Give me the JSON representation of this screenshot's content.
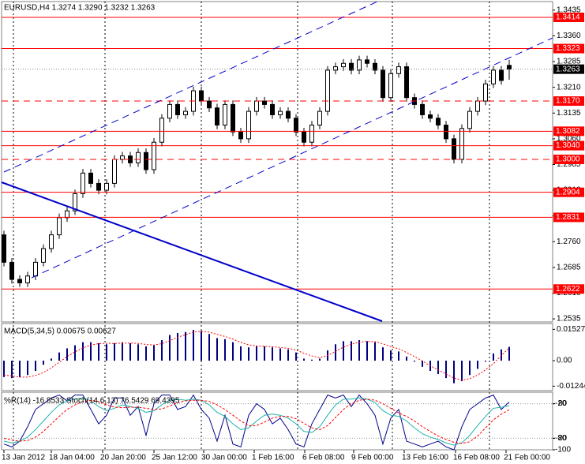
{
  "chart_data": [
    {
      "type": "candlestick",
      "title": "EURUSD,H4 1.3274 1.3290 1.3232 1.3263",
      "open": [
        1.278,
        1.27,
        1.265,
        1.264,
        1.266,
        1.27,
        1.274,
        1.278,
        1.283,
        1.285,
        1.29,
        1.296,
        1.293,
        1.291,
        1.293,
        1.3,
        1.301,
        1.299,
        1.302,
        1.297,
        1.305,
        1.312,
        1.316,
        1.313,
        1.314,
        1.32,
        1.317,
        1.315,
        1.31,
        1.316,
        1.308,
        1.306,
        1.314,
        1.317,
        1.316,
        1.313,
        1.314,
        1.312,
        1.308,
        1.305,
        1.31,
        1.314,
        1.326,
        1.327,
        1.328,
        1.326,
        1.329,
        1.328,
        1.326,
        1.318,
        1.325,
        1.327,
        1.318,
        1.316,
        1.313,
        1.312,
        1.31,
        1.306,
        1.3,
        1.309,
        1.314,
        1.317,
        1.322,
        1.326,
        1.3274
      ],
      "high": [
        1.2792,
        1.2712,
        1.2662,
        1.2672,
        1.2712,
        1.2752,
        1.2792,
        1.2842,
        1.2862,
        1.2912,
        1.2972,
        1.2972,
        1.2942,
        1.2942,
        1.3012,
        1.3022,
        1.3022,
        1.3032,
        1.3032,
        1.3062,
        1.3132,
        1.3172,
        1.3172,
        1.3152,
        1.3212,
        1.3212,
        1.3182,
        1.3162,
        1.3172,
        1.3172,
        1.3092,
        1.3152,
        1.3182,
        1.3182,
        1.3172,
        1.3152,
        1.3152,
        1.3132,
        1.3092,
        1.3112,
        1.3152,
        1.3272,
        1.3282,
        1.3292,
        1.3292,
        1.3302,
        1.3302,
        1.3292,
        1.3272,
        1.3262,
        1.3282,
        1.3282,
        1.3192,
        1.3172,
        1.3142,
        1.3132,
        1.3112,
        1.3072,
        1.3102,
        1.3152,
        1.3182,
        1.3232,
        1.3272,
        1.3272,
        1.329
      ],
      "low": [
        1.2688,
        1.2638,
        1.2628,
        1.2628,
        1.2648,
        1.2688,
        1.2728,
        1.2768,
        1.2818,
        1.2838,
        1.2888,
        1.2918,
        1.2898,
        1.2898,
        1.2918,
        1.2988,
        1.2978,
        1.2978,
        1.2958,
        1.2958,
        1.3038,
        1.3108,
        1.3118,
        1.3118,
        1.3128,
        1.3158,
        1.3138,
        1.3088,
        1.3088,
        1.3068,
        1.3048,
        1.3048,
        1.3128,
        1.3148,
        1.3118,
        1.3118,
        1.3108,
        1.3068,
        1.3038,
        1.3038,
        1.3088,
        1.3128,
        1.3248,
        1.3258,
        1.3248,
        1.3248,
        1.3268,
        1.3248,
        1.3168,
        1.3168,
        1.3238,
        1.3168,
        1.3148,
        1.3118,
        1.3108,
        1.3088,
        1.3048,
        1.2988,
        1.2988,
        1.3078,
        1.3128,
        1.3158,
        1.3208,
        1.3218,
        1.3232
      ],
      "close": [
        1.27,
        1.265,
        1.264,
        1.266,
        1.27,
        1.274,
        1.278,
        1.283,
        1.285,
        1.29,
        1.296,
        1.293,
        1.291,
        1.293,
        1.3,
        1.301,
        1.299,
        1.302,
        1.297,
        1.305,
        1.312,
        1.316,
        1.313,
        1.314,
        1.32,
        1.317,
        1.315,
        1.31,
        1.316,
        1.308,
        1.306,
        1.314,
        1.317,
        1.316,
        1.313,
        1.314,
        1.312,
        1.308,
        1.305,
        1.31,
        1.314,
        1.326,
        1.327,
        1.328,
        1.326,
        1.329,
        1.328,
        1.326,
        1.318,
        1.325,
        1.327,
        1.318,
        1.316,
        1.313,
        1.312,
        1.31,
        1.306,
        1.3,
        1.309,
        1.314,
        1.317,
        1.322,
        1.326,
        1.323,
        1.3263
      ],
      "xlim": [
        -0.3,
        69.5
      ],
      "xticks": [
        {
          "value": 0,
          "label": "13 Jan 2012"
        },
        {
          "value": 6,
          "label": "18 Jan 04:00"
        },
        {
          "value": 12.5,
          "label": "20 Jan 20:00"
        },
        {
          "value": 19,
          "label": "25 Jan 12:00"
        },
        {
          "value": 25.3,
          "label": "30 Jan 00:00"
        },
        {
          "value": 31.7,
          "label": "1 Feb 16:00"
        },
        {
          "value": 38.1,
          "label": "6 Feb 08:00"
        },
        {
          "value": 44.3,
          "label": "9 Feb 00:00"
        },
        {
          "value": 50.7,
          "label": "13 Feb 16:00"
        },
        {
          "value": 57.2,
          "label": "16 Feb 08:00"
        },
        {
          "value": 63.6,
          "label": "21 Feb 00:00"
        }
      ],
      "ylim": [
        1.2526,
        1.346
      ],
      "yticks": [
        1.2535,
        {
          "value": 1.261,
          "label": "1.2610"
        },
        1.2685,
        {
          "value": 1.276,
          "label": "1.2760"
        },
        1.2835,
        {
          "value": 1.291,
          "label": "1.2910"
        },
        1.2985,
        {
          "value": 1.306,
          "label": "1.3060"
        },
        1.3135,
        {
          "value": 1.321,
          "label": "1.3210"
        },
        1.3285,
        {
          "value": 1.336,
          "label": "1.3360"
        },
        1.3435
      ],
      "levels": [
        {
          "value": 1.3414,
          "label": "1.3414",
          "style": "solid"
        },
        {
          "value": 1.3323,
          "label": "1.3323",
          "style": "solid"
        },
        {
          "value": 1.317,
          "label": "1.3170",
          "style": "dashed"
        },
        {
          "value": 1.3082,
          "label": "1.3082",
          "style": "solid"
        },
        {
          "value": 1.304,
          "label": "1.3040",
          "style": "solid"
        },
        {
          "value": 1.3,
          "label": "1.3000",
          "style": "dashed"
        },
        {
          "value": 1.2904,
          "label": "1.2904",
          "style": "solid"
        },
        {
          "value": 1.2831,
          "label": "1.2831",
          "style": "solid"
        },
        {
          "value": 1.2622,
          "label": "1.2622",
          "style": "solid"
        }
      ],
      "level_color": "#ff0000",
      "last_price": {
        "value": 1.3263,
        "label": "1.3263"
      }
    },
    {
      "type": "macd",
      "title": "MACD(5,34,5) 0.00675 0.00627",
      "values": [
        -0.008,
        -0.0085,
        -0.008,
        -0.007,
        -0.005,
        -0.002,
        0.001,
        0.004,
        0.006,
        0.0075,
        0.009,
        0.009,
        0.0085,
        0.008,
        0.0085,
        0.009,
        0.0085,
        0.008,
        0.007,
        0.0075,
        0.01,
        0.0125,
        0.0135,
        0.014,
        0.015,
        0.0145,
        0.013,
        0.011,
        0.0105,
        0.009,
        0.007,
        0.0065,
        0.007,
        0.007,
        0.0065,
        0.006,
        0.0055,
        0.004,
        0.001,
        0.0005,
        0.001,
        0.005,
        0.008,
        0.0095,
        0.0095,
        0.01,
        0.0095,
        0.009,
        0.0065,
        0.005,
        0.0045,
        0.002,
        -0.0005,
        -0.003,
        -0.005,
        -0.0065,
        -0.0085,
        -0.011,
        -0.01,
        -0.007,
        -0.004,
        -0.0005,
        0.0035,
        0.0055,
        0.00675
      ],
      "signal": [
        -0.007,
        -0.0075,
        -0.008,
        -0.008,
        -0.0072,
        -0.0058,
        -0.0035,
        -0.0008,
        0.002,
        0.0043,
        0.0062,
        0.0076,
        0.0083,
        0.0085,
        0.0084,
        0.0086,
        0.0086,
        0.0084,
        0.0079,
        0.0076,
        0.0083,
        0.0097,
        0.0114,
        0.0127,
        0.0139,
        0.0143,
        0.0139,
        0.0128,
        0.0118,
        0.0105,
        0.0089,
        0.0077,
        0.0072,
        0.007,
        0.0068,
        0.0064,
        0.006,
        0.0052,
        0.0036,
        0.0023,
        0.0015,
        0.0025,
        0.0045,
        0.0066,
        0.008,
        0.009,
        0.0094,
        0.0093,
        0.0082,
        0.0068,
        0.0058,
        0.004,
        0.002,
        -0.0002,
        -0.0025,
        -0.0045,
        -0.0065,
        -0.0085,
        -0.0095,
        -0.0088,
        -0.007,
        -0.0045,
        -0.0015,
        0.0025,
        0.00627
      ],
      "color": "#000080",
      "signal_color": "#ff0000",
      "ylim": [
        -0.0146,
        0.0181
      ],
      "yticks": [
        0.01527,
        {
          "value": 0,
          "label": "0.00"
        },
        -0.01244
      ]
    },
    {
      "type": "oscillator",
      "title": "%R(14) -16.8533  Stoch(14,6,13) 76.5429 69.4395",
      "series": [
        {
          "color": "#00008b",
          "axis": "y",
          "values": [
            -90,
            -95,
            -85,
            -60,
            -30,
            -20,
            -10,
            -5,
            -15,
            -5,
            -5,
            -30,
            -55,
            -40,
            -10,
            -10,
            -40,
            -25,
            -75,
            -20,
            -5,
            -5,
            -30,
            -25,
            -5,
            -30,
            -45,
            -85,
            -40,
            -90,
            -95,
            -40,
            -20,
            -30,
            -55,
            -45,
            -65,
            -90,
            -95,
            -55,
            -30,
            -5,
            -10,
            -5,
            -25,
            -5,
            -20,
            -40,
            -90,
            -45,
            -30,
            -85,
            -90,
            -95,
            -90,
            -85,
            -95,
            -100,
            -60,
            -30,
            -20,
            -10,
            -5,
            -30,
            -16.8533
          ]
        },
        {
          "color": "#20b2aa",
          "axis": "y2",
          "values": [
            15,
            12,
            15,
            22,
            35,
            50,
            65,
            78,
            85,
            88,
            90,
            85,
            75,
            68,
            72,
            78,
            75,
            72,
            65,
            68,
            78,
            86,
            88,
            86,
            88,
            86,
            78,
            65,
            58,
            45,
            35,
            38,
            50,
            60,
            62,
            60,
            55,
            45,
            32,
            30,
            40,
            60,
            78,
            88,
            88,
            90,
            88,
            82,
            68,
            60,
            58,
            50,
            38,
            28,
            22,
            18,
            12,
            8,
            12,
            25,
            42,
            58,
            72,
            74,
            76.5429
          ]
        },
        {
          "color": "#ff0000",
          "axis": "y2",
          "dashed": true,
          "values": [
            20,
            17,
            15,
            16,
            22,
            32,
            45,
            58,
            70,
            78,
            84,
            86,
            84,
            78,
            74,
            73,
            74,
            74,
            72,
            70,
            71,
            76,
            82,
            85,
            86,
            86,
            84,
            78,
            70,
            60,
            50,
            42,
            42,
            48,
            55,
            58,
            58,
            54,
            46,
            38,
            35,
            42,
            56,
            70,
            80,
            86,
            88,
            86,
            80,
            72,
            64,
            58,
            50,
            40,
            32,
            24,
            18,
            13,
            11,
            14,
            24,
            38,
            52,
            62,
            69.4395
          ]
        }
      ],
      "ylim": [
        -100,
        0
      ],
      "yticks": [
        -20,
        -80,
        -100
      ],
      "y2lim": [
        0,
        100
      ],
      "y2ticks": [
        80,
        20
      ]
    }
  ]
}
